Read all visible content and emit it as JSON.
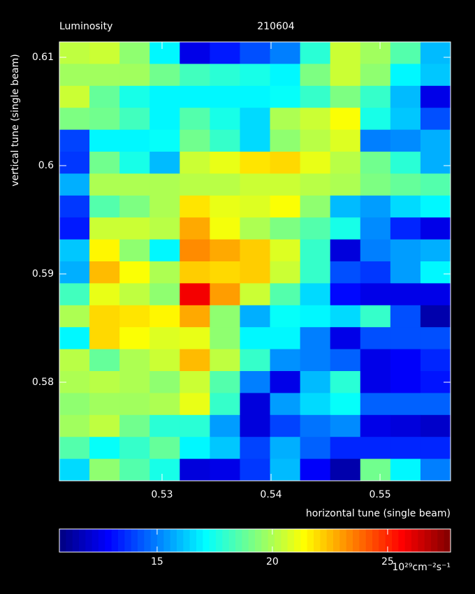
{
  "chart_data": {
    "type": "heatmap",
    "title": "Luminosity",
    "subtitle": "210604",
    "x_label": "horizontal tune (single beam)",
    "y_label": "vertical tune (single beam)",
    "xlim": [
      0.52058,
      0.55647
    ],
    "xticks": [
      0.53,
      0.54,
      0.55
    ],
    "ylim": [
      0.5709,
      0.61142
    ],
    "yticks": [
      0.58,
      0.59,
      0.6,
      0.61
    ],
    "colormap": "jet",
    "colorbar": {
      "lim": [
        10.76,
        27.73
      ],
      "ticks": [
        15,
        20,
        25
      ],
      "label": "10²⁹cm⁻²s⁻¹"
    },
    "z": [
      [
        20.3,
        20.5,
        19.5,
        17,
        12.5,
        13.3,
        14.2,
        15,
        17.8,
        20.5,
        19.8,
        18.5,
        16
      ],
      [
        19.8,
        19.8,
        19.8,
        19,
        18.2,
        17.8,
        17.5,
        17,
        19.2,
        20.5,
        19.5,
        17,
        16.2
      ],
      [
        20.5,
        18.8,
        17.5,
        17,
        17,
        17,
        17,
        17.2,
        18,
        19.2,
        18,
        16,
        12.5
      ],
      [
        19.2,
        19,
        18.2,
        17,
        18.5,
        17.5,
        16.5,
        20,
        20.5,
        21.3,
        17.5,
        16.2,
        14.2
      ],
      [
        14,
        17,
        17,
        17.2,
        19,
        18,
        16.5,
        19.5,
        20.2,
        20.8,
        15,
        15.2,
        15.8
      ],
      [
        13.8,
        19,
        17.5,
        16,
        20.5,
        21,
        21.8,
        22,
        21,
        20.2,
        19,
        17.8,
        15.8
      ],
      [
        15.8,
        20,
        20,
        20,
        20.2,
        20.2,
        20.5,
        20.5,
        20.2,
        20,
        19.2,
        18.8,
        18.5
      ],
      [
        13.8,
        18.5,
        19.2,
        20,
        21.8,
        21,
        20.8,
        21.3,
        19.5,
        16,
        15.5,
        16.5,
        17
      ],
      [
        13.3,
        20.5,
        20.5,
        20.2,
        22.8,
        21.2,
        20,
        19.2,
        18.5,
        17.5,
        15.2,
        13.5,
        12.5
      ],
      [
        16.2,
        21.5,
        19.5,
        17,
        23.3,
        22.8,
        22.2,
        20.8,
        18,
        12.3,
        15,
        15.5,
        15.8
      ],
      [
        15.8,
        22.5,
        21.3,
        20,
        22.2,
        22,
        22.2,
        20.5,
        18,
        14.2,
        13.8,
        15.5,
        17
      ],
      [
        18.2,
        21,
        20.3,
        19.5,
        25.8,
        23,
        20.5,
        18.5,
        16.5,
        13,
        12.5,
        12.5,
        12.5
      ],
      [
        20,
        22,
        21.8,
        21.5,
        22.8,
        19.5,
        15.8,
        17.2,
        17,
        16.5,
        18,
        14.2,
        11.5
      ],
      [
        17,
        22,
        21.3,
        20.8,
        21,
        19.5,
        17,
        17,
        15,
        12.5,
        14.2,
        14.2,
        14.2
      ],
      [
        20.2,
        18.8,
        20,
        20.5,
        22.5,
        20.3,
        18,
        15.3,
        15,
        14.5,
        12.5,
        12.8,
        13.5
      ],
      [
        20,
        20.2,
        20,
        19.5,
        20.5,
        18.5,
        15,
        12.5,
        16,
        17.8,
        12.5,
        12.8,
        13.2
      ],
      [
        19.5,
        19.8,
        19.8,
        20,
        21,
        18,
        12.3,
        15.5,
        16.5,
        17.2,
        14.5,
        14.5,
        14.5
      ],
      [
        19.8,
        20.3,
        19,
        17.8,
        17.8,
        15.5,
        12.3,
        14,
        14.8,
        15.2,
        12.5,
        12.3,
        12
      ],
      [
        18.5,
        17.2,
        18,
        18.8,
        17,
        16.2,
        14,
        15.8,
        14.5,
        13.5,
        13.5,
        13.5,
        13.5
      ],
      [
        16.5,
        19.5,
        18.5,
        17.5,
        12.3,
        12.5,
        13.8,
        16,
        12.8,
        11.5,
        19,
        17,
        15
      ]
    ]
  }
}
